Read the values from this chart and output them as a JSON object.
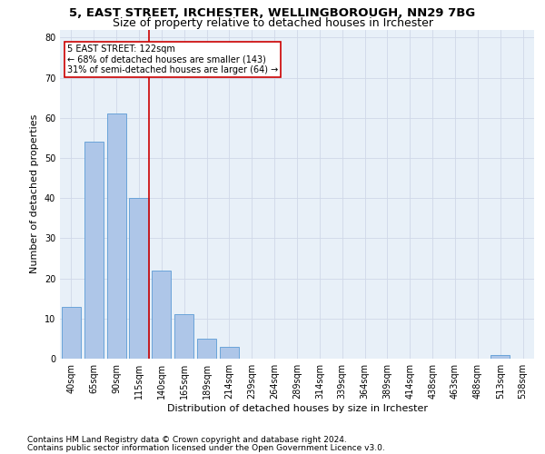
{
  "title1": "5, EAST STREET, IRCHESTER, WELLINGBOROUGH, NN29 7BG",
  "title2": "Size of property relative to detached houses in Irchester",
  "xlabel": "Distribution of detached houses by size in Irchester",
  "ylabel": "Number of detached properties",
  "bar_labels": [
    "40sqm",
    "65sqm",
    "90sqm",
    "115sqm",
    "140sqm",
    "165sqm",
    "189sqm",
    "214sqm",
    "239sqm",
    "264sqm",
    "289sqm",
    "314sqm",
    "339sqm",
    "364sqm",
    "389sqm",
    "414sqm",
    "438sqm",
    "463sqm",
    "488sqm",
    "513sqm",
    "538sqm"
  ],
  "bar_values": [
    13,
    54,
    61,
    40,
    22,
    11,
    5,
    3,
    0,
    0,
    0,
    0,
    0,
    0,
    0,
    0,
    0,
    0,
    0,
    1,
    0
  ],
  "bar_color": "#aec6e8",
  "bar_edge_color": "#5b9bd5",
  "ylim": [
    0,
    82
  ],
  "yticks": [
    0,
    10,
    20,
    30,
    40,
    50,
    60,
    70,
    80
  ],
  "annotation_text": "5 EAST STREET: 122sqm\n← 68% of detached houses are smaller (143)\n31% of semi-detached houses are larger (64) →",
  "annotation_box_color": "#ffffff",
  "annotation_box_edge": "#cc0000",
  "footnote1": "Contains HM Land Registry data © Crown copyright and database right 2024.",
  "footnote2": "Contains public sector information licensed under the Open Government Licence v3.0.",
  "bg_color": "#ffffff",
  "grid_color": "#d0d8e8",
  "title1_fontsize": 9.5,
  "title2_fontsize": 9,
  "axis_label_fontsize": 8,
  "tick_fontsize": 7,
  "annotation_fontsize": 7,
  "footnote_fontsize": 6.5
}
